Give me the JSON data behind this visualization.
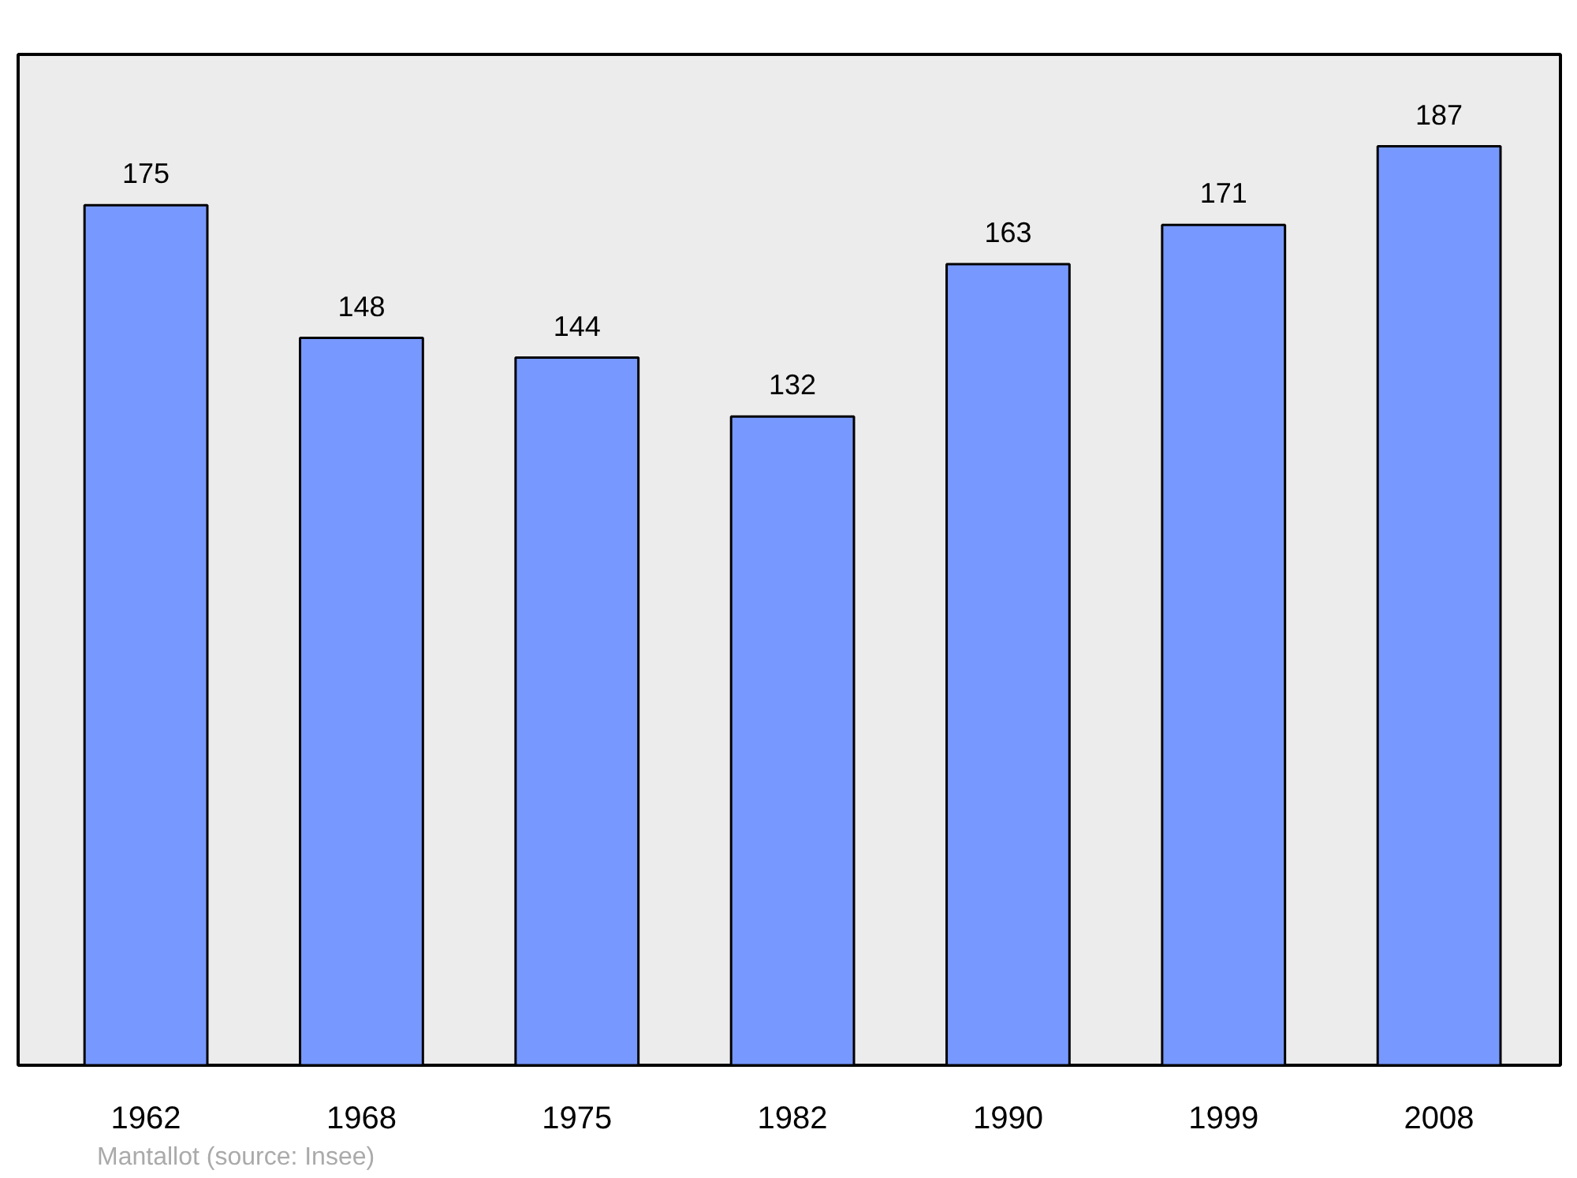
{
  "chart_data": {
    "type": "bar",
    "categories": [
      "1962",
      "1968",
      "1975",
      "1982",
      "1990",
      "1999",
      "2008"
    ],
    "values": [
      175,
      148,
      144,
      132,
      163,
      171,
      187
    ],
    "color": "#7799ff",
    "data_labels": true,
    "grid": false,
    "tick_labels": "x",
    "annotations": [
      "Mantallot",
      "(source: Insee)"
    ]
  }
}
